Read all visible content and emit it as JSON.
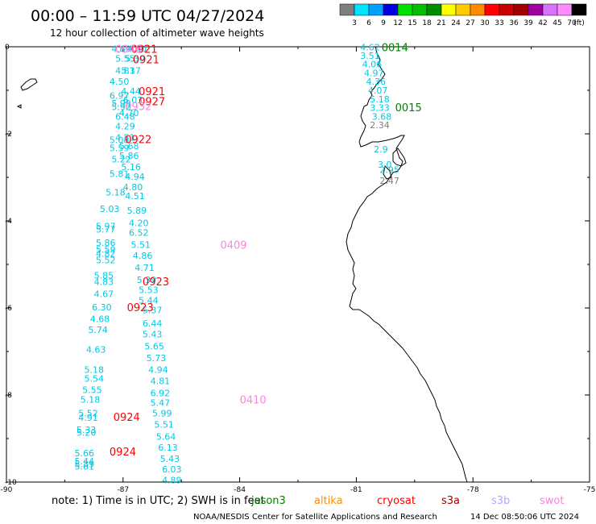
{
  "header": {
    "title": "00:00 – 11:59 UTC 04/27/2024",
    "subtitle": "12 hour collection of altimeter wave heights"
  },
  "colorbar": {
    "colors": [
      "#7f7f7f",
      "#00e5ff",
      "#00a0ff",
      "#0000e0",
      "#00e000",
      "#00c000",
      "#008c00",
      "#ffff00",
      "#ffcc00",
      "#ff8c00",
      "#ff0000",
      "#c80000",
      "#a00000",
      "#a000a0",
      "#d873ff",
      "#ff8cff",
      "#000000"
    ],
    "labels": [
      "3",
      "6",
      "9",
      "12",
      "15",
      "18",
      "21",
      "24",
      "27",
      "30",
      "33",
      "36",
      "39",
      "42",
      "45",
      "70",
      "(ft)"
    ]
  },
  "axes": {
    "lon_ticks": [
      "-90",
      "-87",
      "-84",
      "-81",
      "-78",
      "-75"
    ],
    "lat_ticks": [
      "0",
      "-2",
      "-4",
      "-6",
      "-8",
      "-10"
    ]
  },
  "observations": [
    {
      "lon": -87.3,
      "lat": -0.05,
      "text": "4.69"
    },
    {
      "lon": -86.9,
      "lat": -0.05,
      "text": "4.40"
    },
    {
      "lon": -87.2,
      "lat": -0.27,
      "text": "5.55"
    },
    {
      "lon": -86.95,
      "lat": -0.27,
      "text": "5.30"
    },
    {
      "lon": -87.2,
      "lat": -0.55,
      "text": "4.83"
    },
    {
      "lon": -87.05,
      "lat": -0.55,
      "text": "5.17"
    },
    {
      "lon": -87.35,
      "lat": -0.8,
      "text": "4.50"
    },
    {
      "lon": -87.05,
      "lat": -1.02,
      "text": "4.44"
    },
    {
      "lon": -87.35,
      "lat": -1.12,
      "text": "6.97"
    },
    {
      "lon": -87.0,
      "lat": -1.22,
      "text": "6.03"
    },
    {
      "lon": -87.3,
      "lat": -1.3,
      "text": "5.99"
    },
    {
      "lon": -87.3,
      "lat": -1.38,
      "text": "5.92"
    },
    {
      "lon": -87.1,
      "lat": -1.52,
      "text": "4.70"
    },
    {
      "lon": -87.2,
      "lat": -1.6,
      "text": "6.48"
    },
    {
      "lon": -87.2,
      "lat": -1.82,
      "text": "4.29"
    },
    {
      "lon": -87.2,
      "lat": -2.08,
      "text": "4.51"
    },
    {
      "lon": -87.35,
      "lat": -2.14,
      "text": "5.08"
    },
    {
      "lon": -87.1,
      "lat": -2.28,
      "text": "5.68"
    },
    {
      "lon": -87.35,
      "lat": -2.32,
      "text": "5.59"
    },
    {
      "lon": -87.1,
      "lat": -2.5,
      "text": "5.86"
    },
    {
      "lon": -87.3,
      "lat": -2.58,
      "text": "5.22"
    },
    {
      "lon": -87.05,
      "lat": -2.76,
      "text": "5.16"
    },
    {
      "lon": -87.35,
      "lat": -2.92,
      "text": "5.81"
    },
    {
      "lon": -86.95,
      "lat": -2.98,
      "text": "4.94"
    },
    {
      "lon": -87.0,
      "lat": -3.22,
      "text": "4.80"
    },
    {
      "lon": -87.45,
      "lat": -3.34,
      "text": "5.18"
    },
    {
      "lon": -86.95,
      "lat": -3.43,
      "text": "4.51"
    },
    {
      "lon": -87.6,
      "lat": -3.72,
      "text": "5.03"
    },
    {
      "lon": -86.9,
      "lat": -3.76,
      "text": "5.89"
    },
    {
      "lon": -86.85,
      "lat": -4.05,
      "text": "4.20"
    },
    {
      "lon": -87.7,
      "lat": -4.12,
      "text": "5.97"
    },
    {
      "lon": -87.7,
      "lat": -4.19,
      "text": "5.77"
    },
    {
      "lon": -86.85,
      "lat": -4.27,
      "text": "6.52"
    },
    {
      "lon": -87.7,
      "lat": -4.5,
      "text": "5.86"
    },
    {
      "lon": -86.8,
      "lat": -4.55,
      "text": "5.51"
    },
    {
      "lon": -87.7,
      "lat": -4.66,
      "text": "5.59"
    },
    {
      "lon": -87.7,
      "lat": -4.75,
      "text": "4.82"
    },
    {
      "lon": -86.75,
      "lat": -4.8,
      "text": "4.86"
    },
    {
      "lon": -87.7,
      "lat": -4.9,
      "text": "5.52"
    },
    {
      "lon": -86.7,
      "lat": -5.07,
      "text": "4.71"
    },
    {
      "lon": -87.75,
      "lat": -5.25,
      "text": "5.85"
    },
    {
      "lon": -86.65,
      "lat": -5.35,
      "text": "5.39"
    },
    {
      "lon": -87.75,
      "lat": -5.4,
      "text": "4.83"
    },
    {
      "lon": -86.6,
      "lat": -5.58,
      "text": "5.53"
    },
    {
      "lon": -87.75,
      "lat": -5.68,
      "text": "4.67"
    },
    {
      "lon": -86.6,
      "lat": -5.82,
      "text": "5.44"
    },
    {
      "lon": -87.8,
      "lat": -5.98,
      "text": "6.30"
    },
    {
      "lon": -86.5,
      "lat": -6.05,
      "text": "5.37"
    },
    {
      "lon": -87.85,
      "lat": -6.25,
      "text": "4.68"
    },
    {
      "lon": -86.5,
      "lat": -6.35,
      "text": "6.44"
    },
    {
      "lon": -87.9,
      "lat": -6.5,
      "text": "5.74"
    },
    {
      "lon": -86.5,
      "lat": -6.6,
      "text": "5.43"
    },
    {
      "lon": -86.45,
      "lat": -6.88,
      "text": "5.65"
    },
    {
      "lon": -87.95,
      "lat": -6.95,
      "text": "4.63"
    },
    {
      "lon": -86.4,
      "lat": -7.15,
      "text": "5.73"
    },
    {
      "lon": -88.0,
      "lat": -7.42,
      "text": "5.18"
    },
    {
      "lon": -86.35,
      "lat": -7.42,
      "text": "4.94"
    },
    {
      "lon": -88.0,
      "lat": -7.62,
      "text": "5.54"
    },
    {
      "lon": -86.3,
      "lat": -7.68,
      "text": "4.81"
    },
    {
      "lon": -88.05,
      "lat": -7.88,
      "text": "5.55"
    },
    {
      "lon": -86.3,
      "lat": -7.95,
      "text": "6.92"
    },
    {
      "lon": -88.1,
      "lat": -8.1,
      "text": "5.18"
    },
    {
      "lon": -86.3,
      "lat": -8.18,
      "text": "5.47"
    },
    {
      "lon": -86.25,
      "lat": -8.42,
      "text": "5.99"
    },
    {
      "lon": -88.15,
      "lat": -8.42,
      "text": "5.52"
    },
    {
      "lon": -88.15,
      "lat": -8.52,
      "text": "4.91"
    },
    {
      "lon": -86.2,
      "lat": -8.68,
      "text": "5.51"
    },
    {
      "lon": -88.2,
      "lat": -8.8,
      "text": "5.33"
    },
    {
      "lon": -88.2,
      "lat": -8.86,
      "text": "5.20"
    },
    {
      "lon": -86.15,
      "lat": -8.95,
      "text": "5.64"
    },
    {
      "lon": -86.1,
      "lat": -9.2,
      "text": "6.13"
    },
    {
      "lon": -88.25,
      "lat": -9.33,
      "text": "5.66"
    },
    {
      "lon": -86.05,
      "lat": -9.46,
      "text": "5.43"
    },
    {
      "lon": -88.25,
      "lat": -9.52,
      "text": "5.44"
    },
    {
      "lon": -88.25,
      "lat": -9.58,
      "text": "5.39"
    },
    {
      "lon": -88.25,
      "lat": -9.64,
      "text": "5.61"
    },
    {
      "lon": -86.0,
      "lat": -9.7,
      "text": "6.03"
    },
    {
      "lon": -86.0,
      "lat": -9.95,
      "text": "4.89"
    },
    {
      "lon": -80.9,
      "lat": -0.01,
      "text": "4.62"
    },
    {
      "lon": -80.9,
      "lat": -0.2,
      "text": "3.51"
    },
    {
      "lon": -80.85,
      "lat": -0.4,
      "text": "4.06"
    },
    {
      "lon": -80.8,
      "lat": -0.6,
      "text": "4.97"
    },
    {
      "lon": -80.75,
      "lat": -0.8,
      "text": "4.36"
    },
    {
      "lon": -80.7,
      "lat": -1.0,
      "text": "4.07"
    },
    {
      "lon": -80.65,
      "lat": -1.2,
      "text": "5.18"
    },
    {
      "lon": -80.65,
      "lat": -1.4,
      "text": "3.33"
    },
    {
      "lon": -80.6,
      "lat": -1.6,
      "text": "3.68"
    },
    {
      "lon": -80.55,
      "lat": -2.35,
      "text": "2.9"
    },
    {
      "lon": -80.45,
      "lat": -2.7,
      "text": "3.0"
    },
    {
      "lon": -80.4,
      "lat": -2.82,
      "text": "2.95"
    }
  ],
  "observations_gray": [
    {
      "lon": -80.65,
      "lat": -1.8,
      "text": "2.34"
    },
    {
      "lon": -80.4,
      "lat": -3.07,
      "text": "2.47"
    }
  ],
  "satellite_tags": [
    {
      "lon": -86.8,
      "lat": -0.05,
      "text": "0921",
      "sat": "cryosat"
    },
    {
      "lon": -87.2,
      "lat": -0.05,
      "text": "0946",
      "sat": "swot"
    },
    {
      "lon": -86.75,
      "lat": -0.29,
      "text": "0921",
      "sat": "cryosat"
    },
    {
      "lon": -86.6,
      "lat": -1.02,
      "text": "0921",
      "sat": "cryosat"
    },
    {
      "lon": -86.6,
      "lat": -1.25,
      "text": "0927",
      "sat": "cryosat"
    },
    {
      "lon": -86.95,
      "lat": -1.36,
      "text": "0932",
      "sat": "swot"
    },
    {
      "lon": -86.95,
      "lat": -2.12,
      "text": "0922",
      "sat": "cryosat"
    },
    {
      "lon": -84.5,
      "lat": -4.55,
      "text": "0409",
      "sat": "swot"
    },
    {
      "lon": -86.5,
      "lat": -5.39,
      "text": "0923",
      "sat": "cryosat"
    },
    {
      "lon": -86.9,
      "lat": -5.98,
      "text": "0923",
      "sat": "cryosat"
    },
    {
      "lon": -84.0,
      "lat": -8.1,
      "text": "0410",
      "sat": "swot"
    },
    {
      "lon": -87.25,
      "lat": -8.5,
      "text": "0924",
      "sat": "cryosat"
    },
    {
      "lon": -87.35,
      "lat": -9.3,
      "text": "0924",
      "sat": "cryosat"
    },
    {
      "lon": -80.35,
      "lat": -0.01,
      "text": "0014",
      "sat": "jason3"
    },
    {
      "lon": -80.0,
      "lat": -1.39,
      "text": "0015",
      "sat": "jason3"
    }
  ],
  "sat_colors": {
    "jason3": "#008000",
    "altika": "#ff8c00",
    "cryosat": "#ff0000",
    "s3a": "#a00000",
    "s3b": "#c0a0ff",
    "swot": "#ff80e0"
  },
  "legend": {
    "note": "note: 1) Time is in UTC; 2) SWH is in feet",
    "sats": [
      {
        "key": "jason3",
        "label": "jason3"
      },
      {
        "key": "altika",
        "label": "altika"
      },
      {
        "key": "cryosat",
        "label": "cryosat"
      },
      {
        "key": "s3a",
        "label": "s3a"
      },
      {
        "key": "s3b",
        "label": "s3b"
      },
      {
        "key": "swot",
        "label": "swot"
      }
    ]
  },
  "footer": {
    "credit": "NOAA/NESDIS Center for Satellite Applications and Research",
    "timestamp": "14 Dec 08:50:06 UTC 2024"
  },
  "obs_color": "#00c8e6",
  "gray_color": "#808080"
}
